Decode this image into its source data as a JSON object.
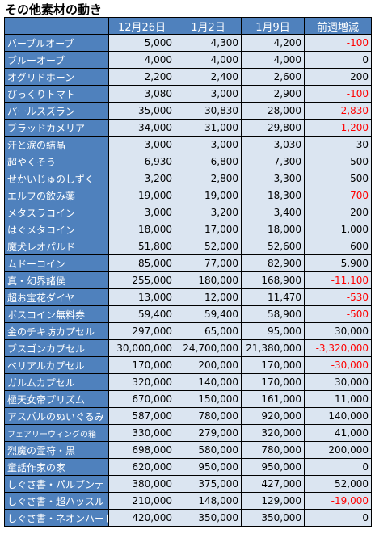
{
  "title": "その他素材の動き",
  "headers": [
    "",
    "12月26日",
    "1月2日",
    "1月9日",
    "前週増減"
  ],
  "rows": [
    {
      "name": "バーブルオーブ",
      "v": [
        "5,000",
        "4,300",
        "4,200",
        "-100"
      ],
      "neg": true
    },
    {
      "name": "ブルーオーブ",
      "v": [
        "4,000",
        "4,000",
        "4,000",
        "0"
      ],
      "neg": false
    },
    {
      "name": "オグリドホーン",
      "v": [
        "2,200",
        "2,400",
        "2,600",
        "200"
      ],
      "neg": false
    },
    {
      "name": "びっくりトマト",
      "v": [
        "3,080",
        "3,000",
        "2,900",
        "-100"
      ],
      "neg": true
    },
    {
      "name": "パールスズラン",
      "v": [
        "35,000",
        "30,830",
        "28,000",
        "-2,830"
      ],
      "neg": true
    },
    {
      "name": "ブラッドカメリア",
      "v": [
        "34,000",
        "31,000",
        "29,800",
        "-1,200"
      ],
      "neg": true
    },
    {
      "name": "汗と涙の結晶",
      "v": [
        "3,000",
        "3,000",
        "3,030",
        "30"
      ],
      "neg": false
    },
    {
      "name": "超やくそう",
      "v": [
        "6,930",
        "6,800",
        "7,300",
        "500"
      ],
      "neg": false
    },
    {
      "name": "せかいじゅのしずく",
      "v": [
        "3,200",
        "2,800",
        "3,300",
        "500"
      ],
      "neg": false
    },
    {
      "name": "エルフの飲み薬",
      "v": [
        "19,000",
        "19,000",
        "18,300",
        "-700"
      ],
      "neg": true
    },
    {
      "name": "メタスラコイン",
      "v": [
        "3,000",
        "3,200",
        "3,400",
        "200"
      ],
      "neg": false
    },
    {
      "name": "はぐメタコイン",
      "v": [
        "18,000",
        "17,000",
        "18,000",
        "1,000"
      ],
      "neg": false
    },
    {
      "name": "魔犬レオパルド",
      "v": [
        "51,800",
        "52,000",
        "52,600",
        "600"
      ],
      "neg": false
    },
    {
      "name": "ムドーコイン",
      "v": [
        "85,000",
        "77,000",
        "82,900",
        "5,900"
      ],
      "neg": false
    },
    {
      "name": "真・幻界諸侯",
      "v": [
        "255,000",
        "180,000",
        "168,900",
        "-11,100"
      ],
      "neg": true
    },
    {
      "name": "超お宝花ダイヤ",
      "v": [
        "13,000",
        "12,000",
        "11,470",
        "-530"
      ],
      "neg": true
    },
    {
      "name": "ボスコイン無料券",
      "v": [
        "59,400",
        "59,400",
        "58,900",
        "-500"
      ],
      "neg": true
    },
    {
      "name": "金のチキ坊カプセル",
      "v": [
        "297,000",
        "65,000",
        "95,000",
        "30,000"
      ],
      "neg": false
    },
    {
      "name": "ブスゴンカプセル",
      "v": [
        "30,000,000",
        "24,700,000",
        "21,380,000",
        "-3,320,000"
      ],
      "neg": true
    },
    {
      "name": "ベリアルカプセル",
      "v": [
        "170,000",
        "200,000",
        "170,000",
        "-30,000"
      ],
      "neg": true
    },
    {
      "name": "ガルムカプセル",
      "v": [
        "320,000",
        "140,000",
        "170,000",
        "30,000"
      ],
      "neg": false
    },
    {
      "name": "極天女帝プリズム",
      "v": [
        "670,000",
        "150,000",
        "161,000",
        "11,000"
      ],
      "neg": false
    },
    {
      "name": "アスパルのぬいぐるみ",
      "v": [
        "587,000",
        "780,000",
        "920,000",
        "140,000"
      ],
      "neg": false
    },
    {
      "name": "フェアリーウィングの箱",
      "v": [
        "330,000",
        "279,000",
        "320,000",
        "41,000"
      ],
      "neg": false,
      "small": true
    },
    {
      "name": "烈魔の霊符・黒",
      "v": [
        "698,000",
        "580,000",
        "780,000",
        "200,000"
      ],
      "neg": false
    },
    {
      "name": "童話作家の家",
      "v": [
        "620,000",
        "950,000",
        "950,000",
        "0"
      ],
      "neg": false
    },
    {
      "name": "しぐさ書・パルプンテ",
      "v": [
        "380,000",
        "375,000",
        "427,000",
        "52,000"
      ],
      "neg": false
    },
    {
      "name": "しぐさ書・超ハッスル",
      "v": [
        "210,000",
        "148,000",
        "129,000",
        "-19,000"
      ],
      "neg": true
    },
    {
      "name": "しぐさ書・ネオンハート",
      "v": [
        "420,000",
        "350,000",
        "350,000",
        "0"
      ],
      "neg": false
    }
  ]
}
